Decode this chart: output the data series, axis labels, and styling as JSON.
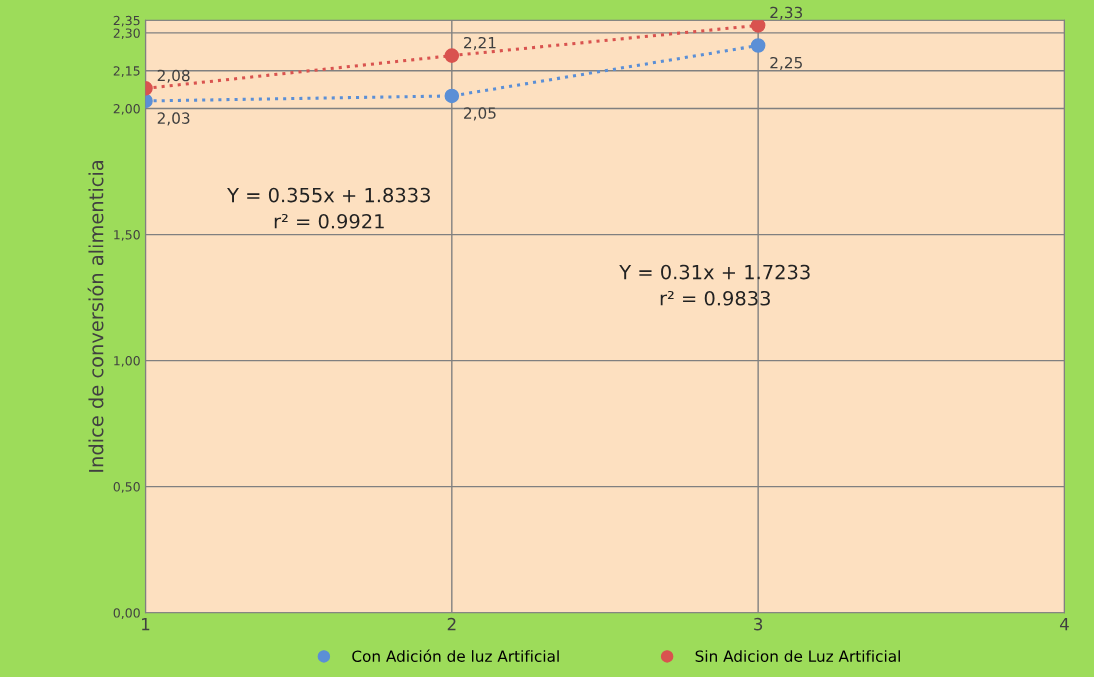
{
  "chart_data": {
    "type": "scatter",
    "ylabel": "Indice de conversión alimenticia",
    "x": [
      1,
      2,
      3
    ],
    "series": [
      {
        "name": "Con Adición de luz Artificial",
        "color": "#5b8fd6",
        "values": [
          2.03,
          2.05,
          2.25
        ],
        "value_labels": [
          "2,03",
          "2,05",
          "2,25"
        ]
      },
      {
        "name": "Sin Adicion de Luz Artificial",
        "color": "#d9534f",
        "values": [
          2.08,
          2.21,
          2.33
        ],
        "value_labels": [
          "2,08",
          "2,21",
          "2,33"
        ]
      },
      {
        "type": "line",
        "marker": "none",
        "color": "#d9534f",
        "line_style": "dotted",
        "values": [
          2.08,
          2.21,
          2.33
        ]
      },
      {
        "type": "line",
        "marker": "none",
        "color": "#5b8fd6",
        "line_style": "dotted",
        "values": [
          2.03,
          2.05,
          2.25
        ]
      }
    ],
    "annotations": [
      "Y = 0.355x + 1.8333\nr² = 0.9921",
      "Y = 0.31x + 1.7233\nr² = 0.9833"
    ],
    "xlim": [
      1,
      4
    ],
    "xticks": [
      1,
      2,
      3,
      4
    ],
    "ylim": [
      0,
      2.35
    ],
    "yticks": [
      {
        "value": 0,
        "label": "0,00"
      },
      {
        "value": 0.5,
        "label": "0,50"
      },
      {
        "value": 1,
        "label": "1,00"
      },
      {
        "value": 1.5,
        "label": "1,50"
      },
      {
        "value": 2,
        "label": "2,00"
      },
      {
        "value": 2.15,
        "label": "2,15"
      },
      {
        "value": 2.3,
        "label": "2,30"
      },
      {
        "value": 2.35,
        "label": "2,35"
      }
    ],
    "grid": true,
    "legend": "bottom",
    "marker": "circle"
  }
}
